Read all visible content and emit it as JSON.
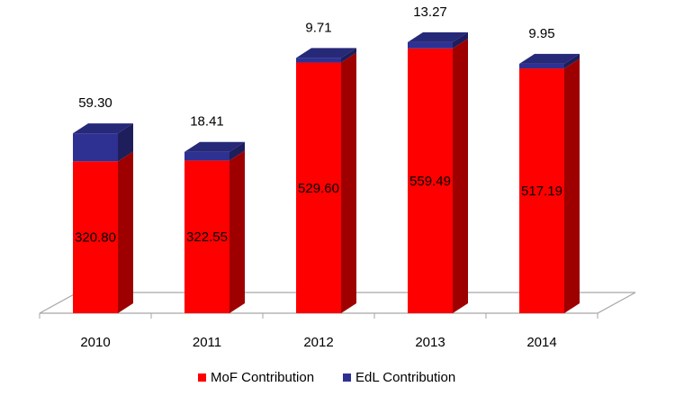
{
  "chart_data": {
    "type": "bar",
    "stacked": true,
    "three_d": true,
    "categories": [
      "2010",
      "2011",
      "2012",
      "2013",
      "2014"
    ],
    "series": [
      {
        "name": "MoF Contribution",
        "color": "#ff0000",
        "values": [
          320.8,
          322.55,
          529.6,
          559.49,
          517.19
        ]
      },
      {
        "name": "EdL Contribution",
        "color": "#2e3192",
        "values": [
          59.3,
          18.41,
          9.71,
          13.27,
          9.95
        ]
      }
    ],
    "data_labels": {
      "MoF Contribution": [
        "320.80",
        "322.55",
        "529.60",
        "559.49",
        "517.19"
      ],
      "EdL Contribution": [
        "59.30",
        "18.41",
        "9.71",
        "13.27",
        "9.95"
      ]
    },
    "ylim": [
      0,
      620
    ],
    "grid": false,
    "legend": "bottom"
  }
}
